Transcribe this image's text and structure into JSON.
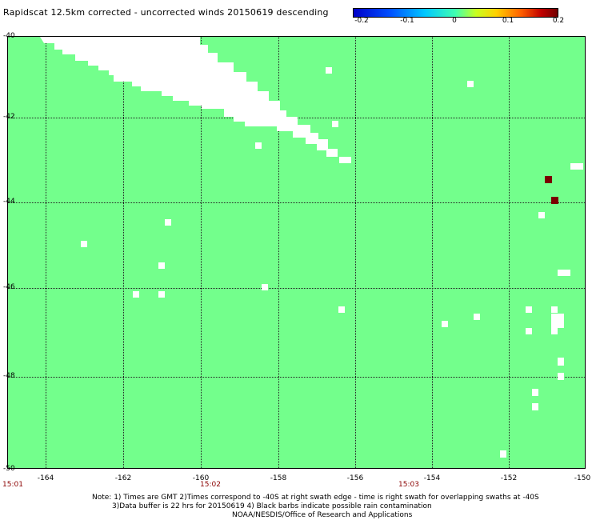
{
  "title": "Rapidscat 12.5km corrected - uncorrected winds 20150619 descending",
  "colorbar": {
    "ticks": [
      "-0.2",
      "-0.1",
      "0",
      "0.1",
      "0.2"
    ],
    "min": -0.2,
    "max": 0.2,
    "colors": [
      "#0000c8",
      "#00c8ff",
      "#73ff8c",
      "#ffd000",
      "#700000"
    ]
  },
  "map": {
    "background_color": "#73ff8c",
    "no_data_color": "#ffffff",
    "rain_flag_color": "#7a0000",
    "lat_labels": [
      "-40",
      "-42",
      "-44",
      "-46",
      "-48",
      "-50"
    ],
    "lon_labels": [
      "-164",
      "-162",
      "-160",
      "-158",
      "-156",
      "-154",
      "-152",
      "-150"
    ],
    "time_labels": [
      "15:01",
      "15:02",
      "15:03"
    ]
  },
  "notes": {
    "line1": "Note: 1) Times are GMT 2)Times correspond to -40S at right swath edge - time is right swath for overlapping swaths at -40S",
    "line2": "3)Data buffer is 22 hrs for 20150619 4) Black barbs indicate possible rain contamination",
    "line3": "NOAA/NESDIS/Office of Research and Applications"
  }
}
